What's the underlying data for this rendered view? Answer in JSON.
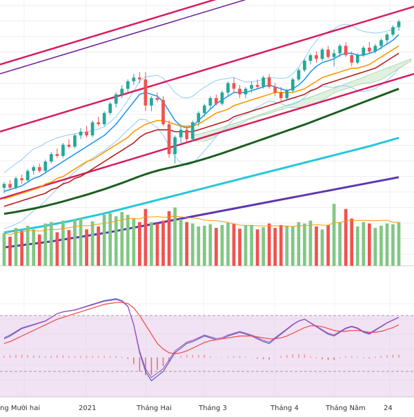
{
  "chart_data": {
    "type": "candlestick",
    "time_axis_labels": [
      "ng Mười hai",
      "2021",
      "Tháng Hai",
      "Tháng 3",
      "Tháng 4",
      "Tháng Năm",
      "24"
    ],
    "price_panel": {
      "grid": true,
      "candles": [
        {
          "o": 80,
          "h": 83,
          "l": 77,
          "c": 82
        },
        {
          "o": 82,
          "h": 84,
          "l": 79,
          "c": 80
        },
        {
          "o": 80,
          "h": 86,
          "l": 79,
          "c": 85
        },
        {
          "o": 85,
          "h": 87,
          "l": 82,
          "c": 84
        },
        {
          "o": 84,
          "h": 90,
          "l": 83,
          "c": 89
        },
        {
          "o": 89,
          "h": 92,
          "l": 87,
          "c": 91
        },
        {
          "o": 91,
          "h": 93,
          "l": 88,
          "c": 89
        },
        {
          "o": 89,
          "h": 95,
          "l": 88,
          "c": 94
        },
        {
          "o": 94,
          "h": 99,
          "l": 93,
          "c": 98
        },
        {
          "o": 98,
          "h": 101,
          "l": 96,
          "c": 97
        },
        {
          "o": 97,
          "h": 104,
          "l": 96,
          "c": 103
        },
        {
          "o": 103,
          "h": 106,
          "l": 101,
          "c": 102
        },
        {
          "o": 102,
          "h": 109,
          "l": 101,
          "c": 108
        },
        {
          "o": 108,
          "h": 112,
          "l": 106,
          "c": 110
        },
        {
          "o": 110,
          "h": 113,
          "l": 107,
          "c": 108
        },
        {
          "o": 108,
          "h": 116,
          "l": 107,
          "c": 115
        },
        {
          "o": 115,
          "h": 118,
          "l": 113,
          "c": 114
        },
        {
          "o": 114,
          "h": 121,
          "l": 113,
          "c": 120
        },
        {
          "o": 120,
          "h": 126,
          "l": 119,
          "c": 125
        },
        {
          "o": 125,
          "h": 131,
          "l": 123,
          "c": 130
        },
        {
          "o": 130,
          "h": 135,
          "l": 128,
          "c": 133
        },
        {
          "o": 133,
          "h": 138,
          "l": 131,
          "c": 137
        },
        {
          "o": 137,
          "h": 141,
          "l": 135,
          "c": 139
        },
        {
          "o": 139,
          "h": 142,
          "l": 136,
          "c": 138
        },
        {
          "o": 138,
          "h": 142,
          "l": 121,
          "c": 124
        },
        {
          "o": 124,
          "h": 129,
          "l": 121,
          "c": 128
        },
        {
          "o": 128,
          "h": 131,
          "l": 126,
          "c": 127
        },
        {
          "o": 127,
          "h": 129,
          "l": 113,
          "c": 114
        },
        {
          "o": 114,
          "h": 116,
          "l": 96,
          "c": 98
        },
        {
          "o": 98,
          "h": 108,
          "l": 93,
          "c": 107
        },
        {
          "o": 107,
          "h": 114,
          "l": 104,
          "c": 111
        },
        {
          "o": 111,
          "h": 113,
          "l": 104,
          "c": 106
        },
        {
          "o": 106,
          "h": 116,
          "l": 105,
          "c": 115
        },
        {
          "o": 115,
          "h": 121,
          "l": 113,
          "c": 120
        },
        {
          "o": 120,
          "h": 125,
          "l": 118,
          "c": 124
        },
        {
          "o": 124,
          "h": 129,
          "l": 122,
          "c": 128
        },
        {
          "o": 128,
          "h": 130,
          "l": 124,
          "c": 125
        },
        {
          "o": 125,
          "h": 132,
          "l": 124,
          "c": 131
        },
        {
          "o": 131,
          "h": 137,
          "l": 129,
          "c": 136
        },
        {
          "o": 136,
          "h": 139,
          "l": 131,
          "c": 133
        },
        {
          "o": 133,
          "h": 135,
          "l": 128,
          "c": 130
        },
        {
          "o": 130,
          "h": 134,
          "l": 128,
          "c": 133
        },
        {
          "o": 133,
          "h": 137,
          "l": 131,
          "c": 135
        },
        {
          "o": 135,
          "h": 138,
          "l": 133,
          "c": 134
        },
        {
          "o": 134,
          "h": 140,
          "l": 133,
          "c": 139
        },
        {
          "o": 139,
          "h": 141,
          "l": 133,
          "c": 134
        },
        {
          "o": 134,
          "h": 136,
          "l": 129,
          "c": 131
        },
        {
          "o": 131,
          "h": 134,
          "l": 126,
          "c": 128
        },
        {
          "o": 128,
          "h": 133,
          "l": 127,
          "c": 132
        },
        {
          "o": 132,
          "h": 139,
          "l": 131,
          "c": 138
        },
        {
          "o": 138,
          "h": 144,
          "l": 137,
          "c": 143
        },
        {
          "o": 143,
          "h": 149,
          "l": 142,
          "c": 148
        },
        {
          "o": 148,
          "h": 152,
          "l": 146,
          "c": 151
        },
        {
          "o": 151,
          "h": 153,
          "l": 147,
          "c": 149
        },
        {
          "o": 149,
          "h": 155,
          "l": 148,
          "c": 154
        },
        {
          "o": 154,
          "h": 156,
          "l": 149,
          "c": 150
        },
        {
          "o": 150,
          "h": 154,
          "l": 145,
          "c": 152
        },
        {
          "o": 152,
          "h": 157,
          "l": 150,
          "c": 156
        },
        {
          "o": 156,
          "h": 158,
          "l": 150,
          "c": 151
        },
        {
          "o": 151,
          "h": 153,
          "l": 145,
          "c": 147
        },
        {
          "o": 147,
          "h": 152,
          "l": 146,
          "c": 151
        },
        {
          "o": 151,
          "h": 156,
          "l": 150,
          "c": 155
        },
        {
          "o": 155,
          "h": 158,
          "l": 152,
          "c": 153
        },
        {
          "o": 153,
          "h": 157,
          "l": 152,
          "c": 156
        },
        {
          "o": 156,
          "h": 160,
          "l": 154,
          "c": 159
        },
        {
          "o": 159,
          "h": 163,
          "l": 157,
          "c": 162
        },
        {
          "o": 162,
          "h": 167,
          "l": 161,
          "c": 166
        },
        {
          "o": 166,
          "h": 170,
          "l": 164,
          "c": 169
        }
      ],
      "moving_averages": [
        {
          "name": "tenkan",
          "color": "#2196f3",
          "values": [
            78,
            79,
            80,
            81,
            83,
            85,
            86,
            88,
            90,
            92,
            94,
            96,
            98,
            100,
            102,
            104,
            106,
            108,
            111,
            114,
            118,
            122,
            126,
            130,
            131,
            130,
            129,
            126,
            121,
            116,
            113,
            112,
            113,
            116,
            119,
            122,
            125,
            127,
            129,
            131,
            131,
            131,
            132,
            133,
            134,
            135,
            134,
            133,
            132,
            133,
            135,
            138,
            142,
            145,
            147,
            148,
            149,
            151,
            152,
            152,
            151,
            151,
            152,
            153,
            155,
            157,
            159,
            162
          ]
        },
        {
          "name": "kijun",
          "color": "#ff9800",
          "values": [
            74,
            75,
            76,
            77,
            78,
            79,
            80,
            82,
            83,
            85,
            86,
            88,
            90,
            92,
            94,
            95,
            97,
            99,
            101,
            103,
            105,
            107,
            110,
            112,
            114,
            115,
            116,
            116,
            115,
            114,
            113,
            113,
            113,
            114,
            116,
            118,
            120,
            121,
            122,
            124,
            125,
            126,
            127,
            128,
            129,
            130,
            131,
            131,
            131,
            131,
            132,
            133,
            135,
            137,
            139,
            140,
            141,
            142,
            143,
            144,
            144,
            145,
            146,
            148,
            150,
            152,
            154,
            156
          ]
        },
        {
          "name": "slow",
          "color": "#b71c1c",
          "values": [
            70,
            71,
            72,
            73,
            74,
            75,
            76,
            77,
            79,
            80,
            82,
            83,
            85,
            86,
            88,
            90,
            92,
            94,
            96,
            98,
            100,
            102,
            104,
            107,
            109,
            110,
            111,
            111,
            111,
            110,
            110,
            110,
            110,
            111,
            112,
            113,
            114,
            115,
            116,
            118,
            119,
            120,
            121,
            122,
            123,
            124,
            125,
            126,
            127,
            128,
            129,
            130,
            132,
            133,
            135,
            136,
            137,
            138,
            139,
            140,
            141,
            142,
            143,
            144,
            146,
            148,
            150,
            152
          ]
        },
        {
          "name": "long",
          "color": "#1b5e20",
          "values": [
            66,
            66.5,
            67,
            67.6,
            68.2,
            68.8,
            69.5,
            70.2,
            71,
            71.8,
            72.6,
            73.5,
            74.4,
            75.3,
            76.2,
            77.2,
            78.2,
            79.2,
            80.3,
            81.4,
            82.5,
            83.7,
            84.9,
            86.1,
            87.2,
            88.2,
            89.1,
            89.9,
            90.6,
            91.3,
            92,
            92.8,
            93.6,
            94.5,
            95.4,
            96.4,
            97.4,
            98.4,
            99.5,
            100.6,
            101.7,
            102.8,
            103.9,
            105,
            106.1,
            107.2,
            108.3,
            109.4,
            110.5,
            111.6,
            112.7,
            113.8,
            115,
            116.2,
            117.4,
            118.6,
            119.8,
            121,
            122.2,
            123.4,
            124.6,
            125.8,
            127,
            128.2,
            129.4,
            130.6,
            131.8,
            133
          ]
        },
        {
          "name": "longer",
          "color": "#26c6da",
          "values": [
            56,
            56.5,
            57,
            57.5,
            58,
            58.5,
            59,
            59.6,
            60.2,
            60.8,
            61.4,
            62,
            62.7,
            63.4,
            64.1,
            64.8,
            65.5,
            66.2,
            67,
            67.8,
            68.6,
            69.4,
            70.2,
            71,
            71.8,
            72.6,
            73.4,
            74.2,
            75,
            75.8,
            76.6,
            77.4,
            78.2,
            79,
            79.8,
            80.6,
            81.4,
            82.2,
            83,
            83.8,
            84.6,
            85.4,
            86.2,
            87,
            87.8,
            88.6,
            89.4,
            90.2,
            91,
            91.8,
            92.6,
            93.4,
            94.2,
            95,
            95.8,
            96.6,
            97.4,
            98.2,
            99,
            99.8,
            100.6,
            101.4,
            102.2,
            103.1,
            104,
            104.9,
            105.8,
            106.7
          ]
        },
        {
          "name": "longest",
          "color": "#5e35b1",
          "values": [
            48,
            48.4,
            48.8,
            49.2,
            49.6,
            50,
            50.4,
            50.8,
            51.2,
            51.7,
            52.2,
            52.7,
            53.2,
            53.7,
            54.2,
            54.7,
            55.2,
            55.7,
            56.2,
            56.8,
            57.4,
            58,
            58.6,
            59.2,
            59.8,
            60.4,
            61,
            61.6,
            62.2,
            62.8,
            63.4,
            64,
            64.6,
            65.2,
            65.8,
            66.4,
            67,
            67.6,
            68.2,
            68.8,
            69.4,
            70,
            70.6,
            71.2,
            71.8,
            72.4,
            73,
            73.6,
            74.2,
            74.8,
            75.4,
            76,
            76.6,
            77.2,
            77.8,
            78.4,
            79,
            79.6,
            80.2,
            80.8,
            81.4,
            82,
            82.6,
            83.2,
            83.8,
            84.4,
            85,
            85.6
          ]
        }
      ],
      "channels": [
        {
          "color": "#d81b60",
          "width": 2.5,
          "x1": -30,
          "y1": 126,
          "x2": 75,
          "y2": 166
        },
        {
          "color": "#d81b60",
          "width": 2.5,
          "x1": -30,
          "y1": 90,
          "x2": 75,
          "y2": 130
        },
        {
          "color": "#d81b60",
          "width": 2.5,
          "x1": -30,
          "y1": 54,
          "x2": 75,
          "y2": 94
        },
        {
          "color": "#6a1b9a",
          "width": 1.5,
          "x1": -30,
          "y1": 121,
          "x2": 75,
          "y2": 161
        }
      ],
      "cloud_color": "#a5d6a7"
    },
    "volume_panel": {
      "up_color": "#81c784",
      "down_color": "#ef5350",
      "values": [
        45,
        40,
        52,
        48,
        55,
        50,
        43,
        58,
        60,
        46,
        62,
        49,
        64,
        66,
        50,
        61,
        54,
        70,
        72,
        68,
        74,
        70,
        65,
        60,
        78,
        60,
        58,
        62,
        75,
        80,
        64,
        60,
        58,
        54,
        55,
        57,
        52,
        56,
        59,
        58,
        51,
        55,
        56,
        50,
        53,
        58,
        52,
        56,
        55,
        54,
        60,
        58,
        62,
        54,
        50,
        56,
        85,
        60,
        78,
        65,
        54,
        60,
        58,
        52,
        55,
        58,
        57,
        60
      ],
      "directions": [
        1,
        0,
        1,
        0,
        1,
        1,
        0,
        1,
        1,
        0,
        1,
        0,
        1,
        1,
        0,
        1,
        0,
        1,
        1,
        1,
        1,
        1,
        1,
        0,
        0,
        1,
        0,
        0,
        0,
        1,
        1,
        0,
        1,
        1,
        1,
        1,
        0,
        1,
        1,
        0,
        0,
        1,
        1,
        0,
        1,
        0,
        0,
        0,
        1,
        1,
        1,
        1,
        1,
        0,
        1,
        0,
        1,
        1,
        0,
        0,
        1,
        1,
        0,
        1,
        1,
        1,
        1,
        1
      ],
      "volume_ma_color": "#ff9800"
    },
    "oscillator_panel": {
      "band_color": "#e1bee7",
      "fast_color": "#5c6bc0",
      "slow_color": "#ef5350",
      "signal_color": "#ab47bc",
      "fast": [
        55,
        58,
        62,
        66,
        68,
        70,
        72,
        74,
        78,
        82,
        84,
        85,
        86,
        88,
        90,
        92,
        94,
        96,
        97,
        98,
        96,
        90,
        70,
        40,
        20,
        10,
        15,
        20,
        30,
        40,
        45,
        50,
        52,
        55,
        58,
        56,
        54,
        55,
        58,
        60,
        62,
        60,
        58,
        55,
        52,
        50,
        55,
        60,
        65,
        70,
        74,
        76,
        72,
        68,
        64,
        60,
        58,
        62,
        66,
        68,
        66,
        62,
        60,
        64,
        68,
        72,
        75,
        78
      ],
      "slow": [
        50,
        52,
        55,
        58,
        61,
        64,
        67,
        70,
        73,
        76,
        78,
        80,
        82,
        84,
        86,
        88,
        90,
        92,
        93,
        94,
        94,
        93,
        88,
        80,
        70,
        60,
        50,
        44,
        40,
        39,
        40,
        42,
        45,
        48,
        51,
        53,
        54,
        55,
        56,
        57,
        58,
        58,
        58,
        57,
        56,
        55,
        55,
        56,
        58,
        61,
        64,
        67,
        69,
        69,
        68,
        66,
        64,
        63,
        63,
        64,
        64,
        63,
        62,
        62,
        63,
        65,
        67,
        70
      ],
      "histogram": [
        5,
        6,
        7,
        8,
        7,
        6,
        5,
        4,
        5,
        6,
        6,
        5,
        4,
        4,
        4,
        4,
        4,
        4,
        4,
        4,
        2,
        -3,
        -18,
        -40,
        -50,
        -50,
        -35,
        -24,
        -10,
        1,
        5,
        8,
        7,
        7,
        7,
        3,
        0,
        0,
        2,
        3,
        4,
        2,
        0,
        -2,
        -4,
        -5,
        0,
        4,
        7,
        9,
        10,
        9,
        3,
        -1,
        -4,
        -6,
        -6,
        -1,
        3,
        4,
        2,
        -1,
        -2,
        2,
        5,
        7,
        8,
        8
      ]
    }
  }
}
